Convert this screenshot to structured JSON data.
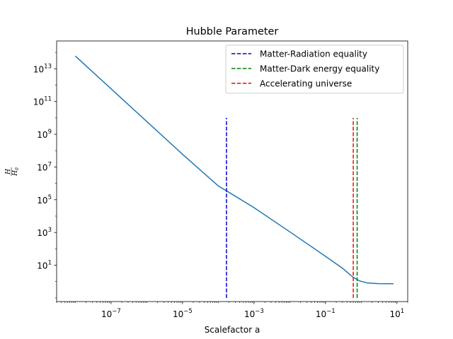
{
  "chart_data": {
    "type": "line",
    "title": "Hubble Parameter",
    "xlabel": "Scalefactor a",
    "ylabel": "H / H0",
    "xscale": "log",
    "yscale": "log",
    "xlim": [
      3e-09,
      20
    ],
    "ylim": [
      0.06,
      500000000000000.0
    ],
    "x_ticks": [
      {
        "value": 1e-07,
        "base": "10",
        "exp": "−7"
      },
      {
        "value": 1e-05,
        "base": "10",
        "exp": "−5"
      },
      {
        "value": 0.001,
        "base": "10",
        "exp": "−3"
      },
      {
        "value": 0.1,
        "base": "10",
        "exp": "−1"
      },
      {
        "value": 10,
        "base": "10",
        "exp": "1"
      }
    ],
    "y_ticks": [
      {
        "value": 10,
        "base": "10",
        "exp": "1"
      },
      {
        "value": 1000,
        "base": "10",
        "exp": "3"
      },
      {
        "value": 100000,
        "base": "10",
        "exp": "5"
      },
      {
        "value": 10000000,
        "base": "10",
        "exp": "7"
      },
      {
        "value": 1000000000,
        "base": "10",
        "exp": "9"
      },
      {
        "value": 100000000000,
        "base": "10",
        "exp": "11"
      },
      {
        "value": 10000000000000,
        "base": "10",
        "exp": "13"
      }
    ],
    "grid": false,
    "legend_position": "top-right",
    "series": [
      {
        "color": "#1f77b4",
        "x": [
          1e-08,
          1e-07,
          1e-06,
          1e-05,
          0.0001,
          0.00017,
          0.001,
          0.01,
          0.1,
          0.3,
          0.6,
          0.9,
          1.5,
          3,
          8
        ],
        "y": [
          60000000000000.0,
          600000000000.0,
          6000000000.0,
          60000000.0,
          700000.0,
          350000.0,
          33000.0,
          1100.0,
          35.0,
          6.5,
          1.8,
          1.1,
          0.82,
          0.75,
          0.74
        ]
      }
    ],
    "vlines": [
      {
        "name": "Matter-Radiation equality",
        "x": 0.00017,
        "ymin": 0.1,
        "ymax": 10000000000.0,
        "color": "#0000cc",
        "style": "dashed"
      },
      {
        "name": "Matter-Dark energy equality",
        "x": 0.77,
        "ymin": 0.1,
        "ymax": 10000000000.0,
        "color": "#008000",
        "style": "dashed"
      },
      {
        "name": "Accelerating universe",
        "x": 0.6,
        "ymin": 0.1,
        "ymax": 10000000000.0,
        "color": "#ff0000",
        "style": "dashed"
      }
    ]
  }
}
